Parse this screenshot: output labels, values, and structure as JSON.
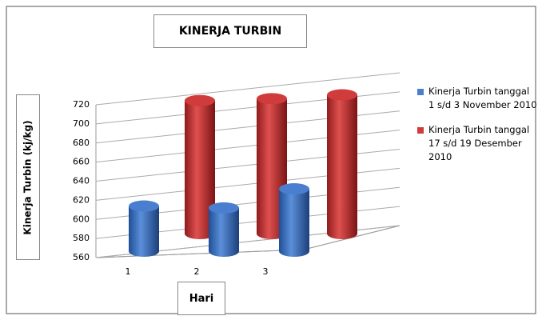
{
  "chart_data": {
    "type": "bar3d",
    "title": "KINERJA TURBIN",
    "x_label": "Hari",
    "y_label": "Kinerja Turbin (kj/kg)",
    "categories": [
      "1",
      "2",
      "3"
    ],
    "series": [
      {
        "name": "Kinerja Turbin tanggal 1 s/d 3 November 2010",
        "color": "#4a7fd0",
        "values": [
          614,
          612,
          632
        ]
      },
      {
        "name": "Kinerja Turbin tanggal 17 s/d 19 Desember 2010",
        "color": "#d03c3c",
        "values": [
          706,
          708,
          712
        ]
      }
    ],
    "ylim": [
      560,
      720
    ],
    "yticks": [
      560,
      580,
      600,
      620,
      640,
      660,
      680,
      700,
      720
    ],
    "grid": true,
    "legend": "right"
  }
}
